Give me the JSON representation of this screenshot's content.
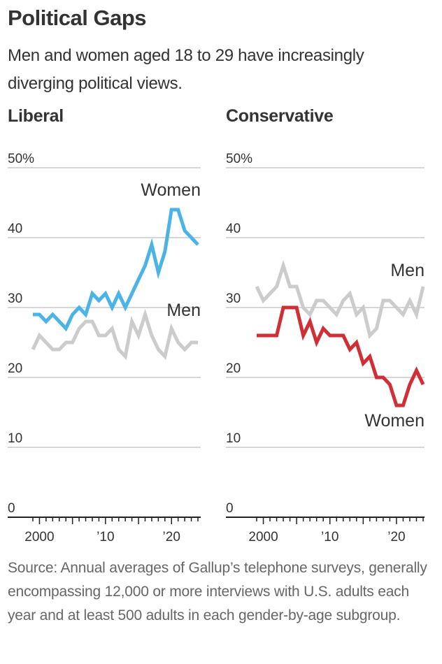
{
  "title": "Political Gaps",
  "subtitle": "Men and women aged 18 to 29 have increasingly diverging political views.",
  "source": "Source: Annual averages of Gallup’s telephone surveys, generally encompassing 12,000 or more interviews with U.S. adults each year and at least 500 adults in each gender-by-age subgroup.",
  "colors": {
    "women_liberal": "#4BB4E6",
    "women_conservative": "#D12F36",
    "men": "#CCCCCC",
    "grid": "#d6d6d6",
    "axis": "#222222"
  },
  "chart_data": [
    {
      "type": "line",
      "title": "Liberal",
      "xlabel": "",
      "ylabel": "",
      "x": [
        1999,
        2000,
        2001,
        2002,
        2003,
        2004,
        2005,
        2006,
        2007,
        2008,
        2009,
        2010,
        2011,
        2012,
        2013,
        2014,
        2015,
        2016,
        2017,
        2018,
        2019,
        2020,
        2021,
        2022,
        2023,
        2024
      ],
      "xlim": [
        1999,
        2024
      ],
      "ylim": [
        0,
        50
      ],
      "yticks": [
        0,
        10,
        20,
        30,
        40,
        50
      ],
      "ytick_labels": [
        "0",
        "10",
        "20",
        "30",
        "40",
        "50%"
      ],
      "xticks": [
        2000,
        2010,
        2020
      ],
      "xtick_labels": [
        "2000",
        "’10",
        "’20"
      ],
      "grid": true,
      "series": [
        {
          "name": "Women",
          "color_key": "women_liberal",
          "values": [
            29,
            29,
            28,
            29,
            28,
            27,
            29,
            30,
            29,
            32,
            31,
            32,
            30,
            32,
            30,
            32,
            34,
            36,
            39,
            35,
            38,
            44,
            44,
            41,
            40,
            39
          ]
        },
        {
          "name": "Men",
          "color_key": "men",
          "values": [
            24,
            26,
            25,
            24,
            24,
            25,
            25,
            27,
            28,
            28,
            26,
            26,
            27,
            24,
            23,
            28,
            26,
            29,
            26,
            24,
            23,
            27,
            25,
            24,
            25,
            25
          ]
        }
      ],
      "annotations": [
        {
          "text": "Women",
          "series": "Women",
          "position": "above-end"
        },
        {
          "text": "Men",
          "series": "Men",
          "position": "above-end"
        }
      ]
    },
    {
      "type": "line",
      "title": "Conservative",
      "xlabel": "",
      "ylabel": "",
      "x": [
        1999,
        2000,
        2001,
        2002,
        2003,
        2004,
        2005,
        2006,
        2007,
        2008,
        2009,
        2010,
        2011,
        2012,
        2013,
        2014,
        2015,
        2016,
        2017,
        2018,
        2019,
        2020,
        2021,
        2022,
        2023,
        2024
      ],
      "xlim": [
        1999,
        2024
      ],
      "ylim": [
        0,
        50
      ],
      "yticks": [
        0,
        10,
        20,
        30,
        40,
        50
      ],
      "ytick_labels": [
        "0",
        "10",
        "20",
        "30",
        "40",
        "50%"
      ],
      "xticks": [
        2000,
        2010,
        2020
      ],
      "xtick_labels": [
        "2000",
        "’10",
        "’20"
      ],
      "grid": true,
      "series": [
        {
          "name": "Men",
          "color_key": "men",
          "values": [
            33,
            31,
            32,
            33,
            36,
            33,
            33,
            30,
            29,
            31,
            31,
            30,
            29,
            31,
            32,
            29,
            30,
            26,
            27,
            31,
            31,
            30,
            29,
            31,
            29,
            33
          ]
        },
        {
          "name": "Women",
          "color_key": "women_conservative",
          "values": [
            26,
            26,
            26,
            26,
            30,
            30,
            30,
            26,
            28,
            25,
            27,
            26,
            26,
            26,
            24,
            25,
            22,
            23,
            20,
            20,
            19,
            16,
            16,
            19,
            21,
            19
          ]
        }
      ],
      "annotations": [
        {
          "text": "Men",
          "series": "Men",
          "position": "above-end"
        },
        {
          "text": "Women",
          "series": "Women",
          "position": "below-end"
        }
      ]
    }
  ]
}
